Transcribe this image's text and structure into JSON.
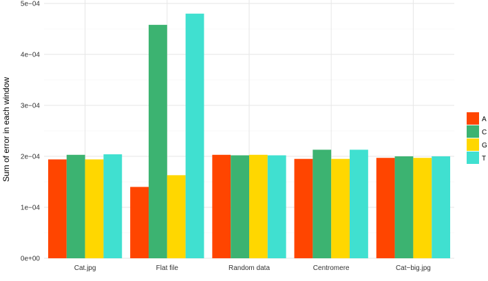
{
  "chart_data": {
    "type": "bar",
    "title": "",
    "xlabel": "",
    "ylabel": "Sum of error in each window",
    "categories": [
      "Cat.jpg",
      "Flat file",
      "Random data",
      "Centromere",
      "Cat−big.jpg"
    ],
    "series": [
      {
        "name": "A",
        "color": "#FF4500",
        "values": [
          0.000194,
          0.00014,
          0.000203,
          0.000195,
          0.000197
        ]
      },
      {
        "name": "C",
        "color": "#3CB371",
        "values": [
          0.000203,
          0.000458,
          0.000202,
          0.000213,
          0.0002
        ]
      },
      {
        "name": "G",
        "color": "#FFD700",
        "values": [
          0.000194,
          0.000163,
          0.000203,
          0.000195,
          0.000197
        ]
      },
      {
        "name": "T",
        "color": "#40E0D0",
        "values": [
          0.000204,
          0.00048,
          0.000202,
          0.000213,
          0.0002
        ]
      }
    ],
    "ylim": [
      0,
      0.0005
    ],
    "yticks": [
      {
        "value": 0,
        "label": "0e+00"
      },
      {
        "value": 0.0001,
        "label": "1e−04"
      },
      {
        "value": 0.0002,
        "label": "2e−04"
      },
      {
        "value": 0.0003,
        "label": "3e−04"
      },
      {
        "value": 0.0004,
        "label": "4e−04"
      },
      {
        "value": 0.0005,
        "label": "5e−04"
      }
    ],
    "grid": true,
    "legend_position": "right"
  }
}
